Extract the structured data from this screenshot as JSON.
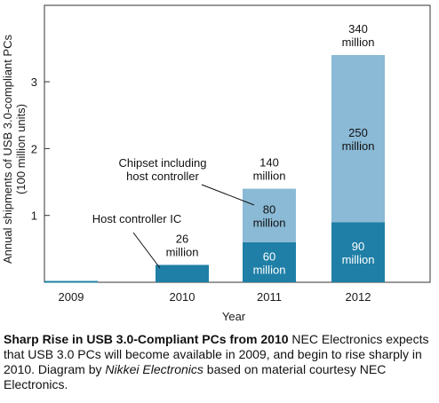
{
  "chart_data": {
    "type": "bar",
    "stacked": true,
    "categories": [
      "2009",
      "2010",
      "2011",
      "2012"
    ],
    "series": [
      {
        "name": "Host controller IC",
        "values": [
          0.02,
          0.26,
          0.6,
          0.9
        ],
        "color": "#1f7fa6"
      },
      {
        "name": "Chipset including host controller",
        "values": [
          0,
          0,
          0.8,
          2.5
        ],
        "color": "#8bbad6"
      }
    ],
    "totals": [
      0.02,
      0.26,
      1.4,
      3.4
    ],
    "xlabel": "Year",
    "ylabel": [
      "Annual shipments of USB 3.0-compliant PCs",
      "(100 million units)"
    ],
    "yticks": [
      1,
      2,
      3
    ],
    "ylim": [
      0,
      4
    ],
    "grid": false,
    "segment_labels": {
      "2011": {
        "Host controller IC": [
          "60",
          "million"
        ],
        "Chipset including host controller": [
          "80",
          "million"
        ]
      },
      "2012": {
        "Host controller IC": [
          "90",
          "million"
        ],
        "Chipset including host controller": [
          "250",
          "million"
        ]
      }
    },
    "total_labels": {
      "2010": [
        "26",
        "million"
      ],
      "2011": [
        "140",
        "million"
      ],
      "2012": [
        "340",
        "million"
      ]
    },
    "annotations": [
      {
        "text": [
          "Chipset including",
          "host controller"
        ],
        "points_to": "2011 chipset segment"
      },
      {
        "text": [
          "Host controller IC"
        ],
        "points_to": "2010 host controller IC bar"
      }
    ]
  },
  "caption": {
    "bold": "Sharp Rise in USB 3.0-Compliant PCs from 2010",
    "text1": "  NEC Electronics expects that USB 3.0 PCs will become available in 2009, and begin to rise sharply in 2010. Diagram by ",
    "italic": "Nikkei Electronics",
    "text2": " based on material courtesy NEC Electronics."
  },
  "colors": {
    "host_controller": "#1f7fa6",
    "chipset": "#8bbad6",
    "axis": "#333333"
  }
}
